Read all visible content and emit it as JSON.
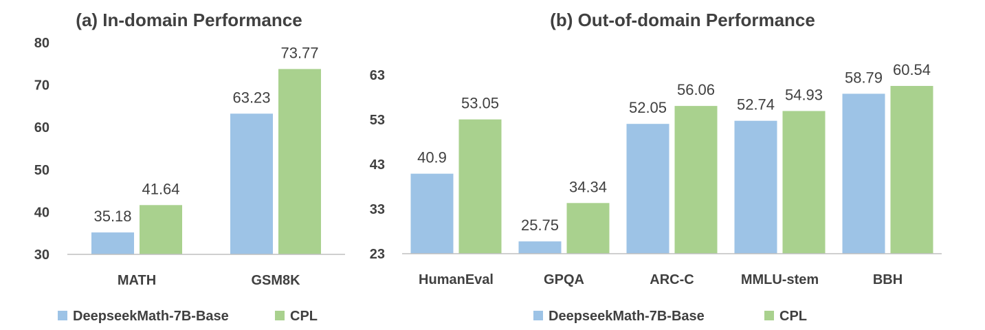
{
  "colors": {
    "base": "#9dc3e6",
    "cpl": "#a9d18e",
    "text": "#404040",
    "axis": "#bfbfbf"
  },
  "chart_data": [
    {
      "type": "bar",
      "title": "(a) In-domain Performance",
      "categories": [
        "MATH",
        "GSM8K"
      ],
      "series": [
        {
          "name": "DeepseekMath-7B-Base",
          "values": [
            35.18,
            63.23
          ],
          "labels": [
            "35.18",
            "63.23"
          ]
        },
        {
          "name": "CPL",
          "values": [
            41.64,
            73.77
          ],
          "labels": [
            "41.64",
            "73.77"
          ]
        }
      ],
      "ylim": [
        30,
        80
      ],
      "yticks": [
        "30",
        "40",
        "50",
        "60",
        "70",
        "80"
      ],
      "xlabel": "",
      "ylabel": "",
      "grid": false,
      "legend": "bottom-left"
    },
    {
      "type": "bar",
      "title": "(b) Out-of-domain Performance",
      "categories": [
        "HumanEval",
        "GPQA",
        "ARC-C",
        "MMLU-stem",
        "BBH"
      ],
      "series": [
        {
          "name": "DeepseekMath-7B-Base",
          "values": [
            40.9,
            25.75,
            52.05,
            52.74,
            58.79
          ],
          "labels": [
            "40.9",
            "25.75",
            "52.05",
            "52.74",
            "58.79"
          ]
        },
        {
          "name": "CPL",
          "values": [
            53.05,
            34.34,
            56.06,
            54.93,
            60.54
          ],
          "labels": [
            "53.05",
            "34.34",
            "56.06",
            "54.93",
            "60.54"
          ]
        }
      ],
      "ylim": [
        23,
        63
      ],
      "yticks": [
        "23",
        "33",
        "43",
        "53",
        "63"
      ],
      "xlabel": "",
      "ylabel": "",
      "grid": false,
      "legend": "bottom-center"
    }
  ]
}
